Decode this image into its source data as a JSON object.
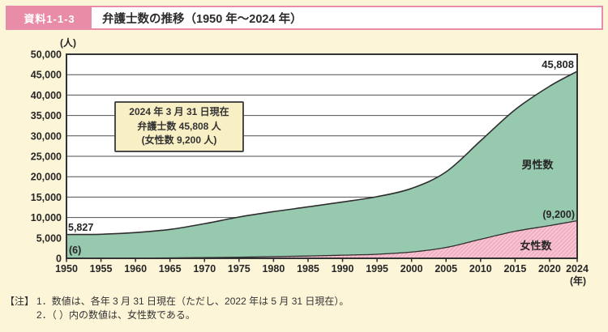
{
  "header": {
    "badge": "資料1-1-3",
    "title": "弁護士数の推移（1950 年～2024 年）"
  },
  "annotation": {
    "line1": "2024 年 3 月 31 日現在",
    "line2": "弁護士数 45,808 人",
    "line3": "(女性数 9,200 人)"
  },
  "notes": {
    "marker": "【注】",
    "line1": "1．数値は、各年 3 月 31 日現在（ただし、2022 年は 5 月 31 日現在）。",
    "line2": "2．（ ）内の数値は、女性数である。"
  },
  "chart_data": {
    "type": "area",
    "stacked": true,
    "title": "弁護士数の推移（1950年～2024年）",
    "xlabel": "(年)",
    "ylabel": "(人)",
    "ylim": [
      0,
      50000
    ],
    "x_range": [
      1950,
      2024
    ],
    "grid": true,
    "ytick_values": [
      0,
      5000,
      10000,
      15000,
      20000,
      25000,
      30000,
      35000,
      40000,
      45000,
      50000
    ],
    "ytick_labels": [
      "0",
      "5,000",
      "10,000",
      "15,000",
      "20,000",
      "25,000",
      "30,000",
      "35,000",
      "40,000",
      "45,000",
      "50,000"
    ],
    "xticks": [
      1950,
      1955,
      1960,
      1965,
      1970,
      1975,
      1980,
      1985,
      1990,
      1995,
      2000,
      2005,
      2010,
      2015,
      2020,
      2024
    ],
    "x": [
      1950,
      1955,
      1960,
      1965,
      1970,
      1975,
      1980,
      1985,
      1990,
      1995,
      2000,
      2005,
      2010,
      2015,
      2020,
      2024
    ],
    "series": [
      {
        "name": "女性数",
        "values": [
          6,
          19,
          44,
          91,
          180,
          280,
          420,
          560,
          766,
          996,
          1530,
          2648,
          4660,
          6618,
          8017,
          9200
        ]
      },
      {
        "name": "男性数",
        "values": [
          5821,
          5880,
          6277,
          6991,
          8298,
          9835,
          11021,
          12044,
          13034,
          14112,
          15596,
          18537,
          24129,
          29797,
          34147,
          36608
        ]
      }
    ],
    "totals": [
      5827,
      5899,
      6321,
      7082,
      8478,
      10115,
      11441,
      12604,
      13800,
      15108,
      17126,
      21185,
      28789,
      36415,
      42164,
      45808
    ],
    "point_labels": {
      "total_start": "5,827",
      "female_start": "(6)",
      "total_end": "45,808",
      "female_end": "(9,200)"
    },
    "series_labels": {
      "male": "男性数",
      "female": "女性数"
    },
    "colors": {
      "male_fill": "#97c9af",
      "female_fill": "#f7c4d2",
      "female_hatch": "#efa3bb",
      "line": "#2e2e2e",
      "grid": "#4f4f4f",
      "text": "#262626",
      "background": "#fdf5d8",
      "plot_background": "#ffffff",
      "accent_pink": "#e98ca7"
    }
  }
}
